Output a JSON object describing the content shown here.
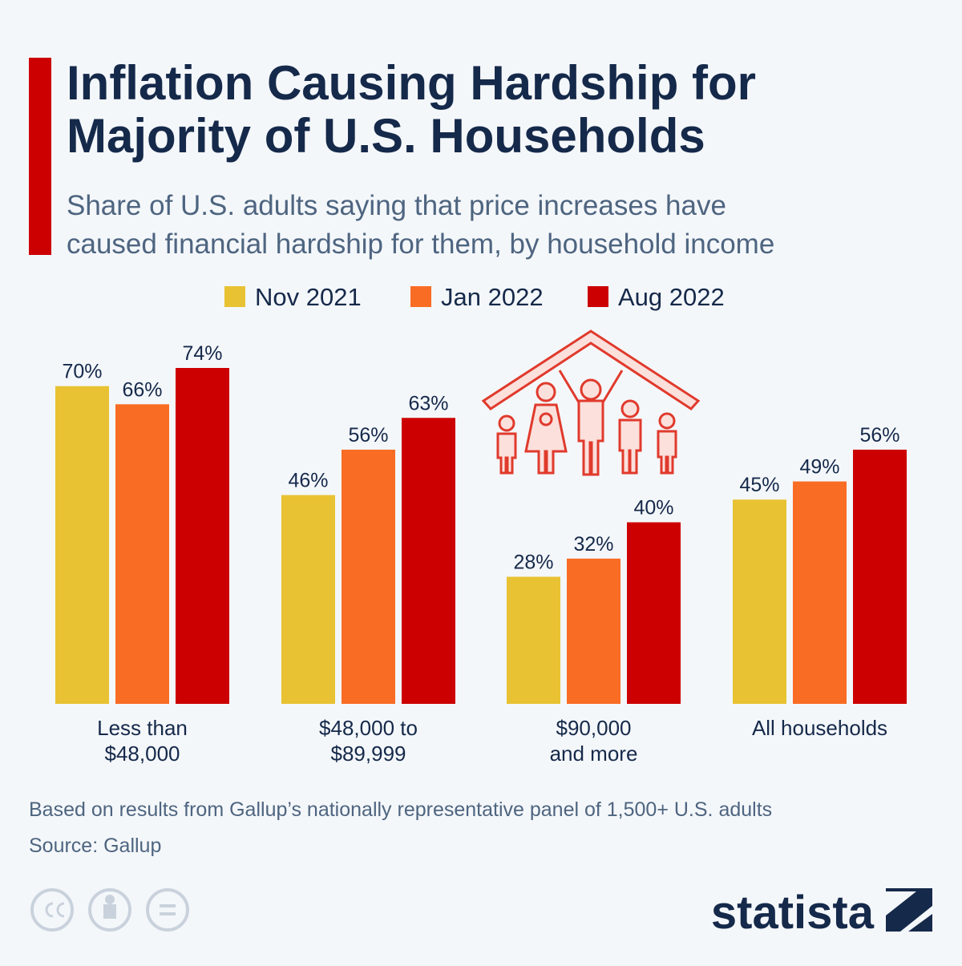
{
  "chart_data": {
    "type": "bar",
    "title": "Inflation Causing Hardship for\nMajority of U.S. Households",
    "subtitle": "Share of U.S. adults saying that price increases have\ncaused financial hardship for them, by household income",
    "categories": [
      "Less than\n$48,000",
      "$48,000 to\n$89,999",
      "$90,000\nand more",
      "All households"
    ],
    "series": [
      {
        "name": "Nov 2021",
        "color": "#e8c232",
        "values": [
          70,
          46,
          28,
          45
        ],
        "value_labels": [
          "70%",
          "46%",
          "28%",
          "45%"
        ]
      },
      {
        "name": "Jan 2022",
        "color": "#f96c24",
        "values": [
          66,
          56,
          32,
          49
        ],
        "value_labels": [
          "66%",
          "56%",
          "32%",
          "49%"
        ]
      },
      {
        "name": "Aug 2022",
        "color": "#cc0000",
        "values": [
          74,
          63,
          40,
          56
        ],
        "value_labels": [
          "74%",
          "63%",
          "40%",
          "56%"
        ]
      }
    ],
    "notes": [
      "Based on results from Gallup’s nationally representative panel of 1,500+ U.S. adults",
      "Source: Gallup"
    ],
    "brand": "statista"
  }
}
